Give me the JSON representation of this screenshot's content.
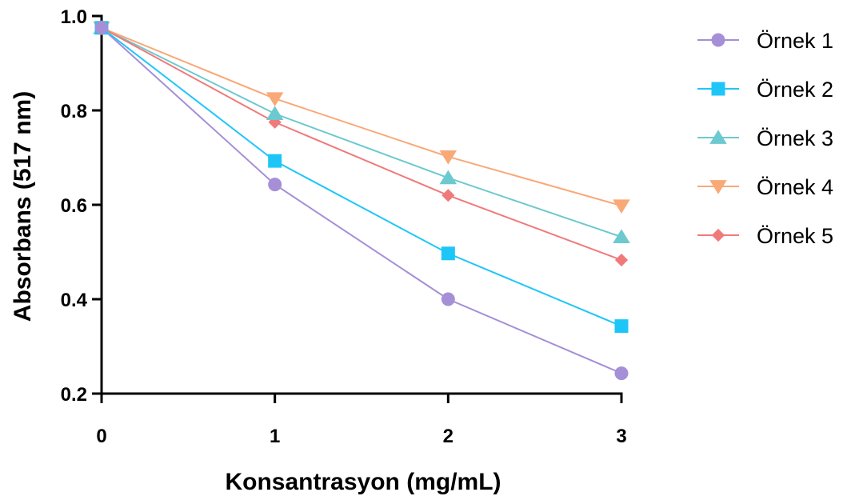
{
  "chart_data": {
    "type": "line",
    "xlabel": "Konsantrasyon (mg/mL)",
    "ylabel": "Absorbans (517 nm)",
    "x": [
      0,
      1,
      2,
      3
    ],
    "xticks": [
      "0",
      "1",
      "2",
      "3"
    ],
    "yticks": [
      "0.2",
      "0.4",
      "0.6",
      "0.8",
      "1.0"
    ],
    "ylim": [
      0.2,
      1.0
    ],
    "xlim": [
      0,
      3
    ],
    "grid": false,
    "legend_position": "right",
    "series": [
      {
        "name": "Örnek 1",
        "marker": "circle",
        "color": "#a58fd6",
        "values": [
          0.975,
          0.643,
          0.4,
          0.243
        ]
      },
      {
        "name": "Örnek 2",
        "marker": "square",
        "color": "#1ec6f8",
        "values": [
          0.975,
          0.693,
          0.497,
          0.343
        ]
      },
      {
        "name": "Örnek 3",
        "marker": "triangle",
        "color": "#6cc9cf",
        "values": [
          0.975,
          0.793,
          0.657,
          0.532
        ]
      },
      {
        "name": "Örnek 4",
        "marker": "triangle-down",
        "color": "#f9a877",
        "values": [
          0.975,
          0.825,
          0.702,
          0.598
        ]
      },
      {
        "name": "Örnek 5",
        "marker": "diamond",
        "color": "#f07a7a",
        "values": [
          0.975,
          0.775,
          0.62,
          0.483
        ]
      }
    ]
  }
}
